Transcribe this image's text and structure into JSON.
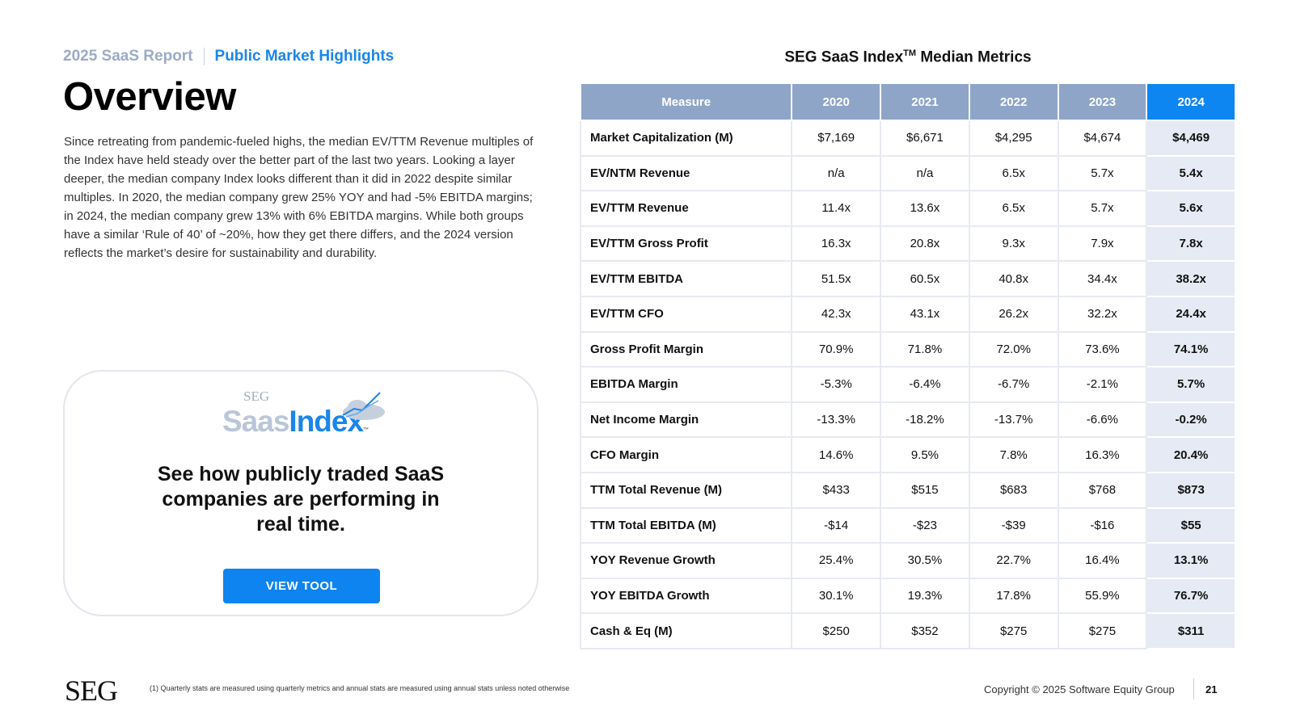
{
  "header": {
    "report": "2025 SaaS Report",
    "section": "Public Market Highlights",
    "title": "Overview"
  },
  "body": "Since retreating from pandemic-fueled highs, the median EV/TTM Revenue multiples of the Index have held steady over the better part of the last two years. Looking a layer deeper, the median company Index looks different than it did in 2022 despite similar multiples. In 2020, the median company grew 25% YOY and had -5% EBITDA margins; in 2024, the median company grew 13% with 6% EBITDA margins. While both groups have a similar ‘Rule of 40’ of ~20%, how they get there differs, and the 2024 version reflects the market’s desire for sustainability and durability.",
  "card": {
    "logo_seg": "SEG",
    "logo_saas": "Saas",
    "logo_index": "Index",
    "logo_tm": "™",
    "text": "See how publicly traded SaaS companies are performing in real time.",
    "button": "VIEW TOOL"
  },
  "table": {
    "title": "SEG SaaS Index",
    "title_tm": "TM",
    "title_suffix": " Median Metrics",
    "headers": [
      "Measure",
      "2020",
      "2021",
      "2022",
      "2023",
      "2024"
    ],
    "rows": [
      [
        "Market Capitalization (M)",
        "$7,169",
        "$6,671",
        "$4,295",
        "$4,674",
        "$4,469"
      ],
      [
        "EV/NTM Revenue",
        "n/a",
        "n/a",
        "6.5x",
        "5.7x",
        "5.4x"
      ],
      [
        "EV/TTM Revenue",
        "11.4x",
        "13.6x",
        "6.5x",
        "5.7x",
        "5.6x"
      ],
      [
        "EV/TTM Gross Profit",
        "16.3x",
        "20.8x",
        "9.3x",
        "7.9x",
        "7.8x"
      ],
      [
        "EV/TTM EBITDA",
        "51.5x",
        "60.5x",
        "40.8x",
        "34.4x",
        "38.2x"
      ],
      [
        "EV/TTM CFO",
        "42.3x",
        "43.1x",
        "26.2x",
        "32.2x",
        "24.4x"
      ],
      [
        "Gross Profit Margin",
        "70.9%",
        "71.8%",
        "72.0%",
        "73.6%",
        "74.1%"
      ],
      [
        "EBITDA Margin",
        "-5.3%",
        "-6.4%",
        "-6.7%",
        "-2.1%",
        "5.7%"
      ],
      [
        "Net Income Margin",
        "-13.3%",
        "-18.2%",
        "-13.7%",
        "-6.6%",
        "-0.2%"
      ],
      [
        "CFO Margin",
        "14.6%",
        "9.5%",
        "7.8%",
        "16.3%",
        "20.4%"
      ],
      [
        "TTM Total Revenue (M)",
        "$433",
        "$515",
        "$683",
        "$768",
        "$873"
      ],
      [
        "TTM Total EBITDA (M)",
        "-$14",
        "-$23",
        "-$39",
        "-$16",
        "$55"
      ],
      [
        "YOY Revenue Growth",
        "25.4%",
        "30.5%",
        "22.7%",
        "16.4%",
        "13.1%"
      ],
      [
        "YOY EBITDA Growth",
        "30.1%",
        "19.3%",
        "17.8%",
        "55.9%",
        "76.7%"
      ],
      [
        "Cash & Eq (M)",
        "$250",
        "$352",
        "$275",
        "$275",
        "$311"
      ]
    ]
  },
  "footer": {
    "logo": "SEG",
    "note": "(1)   Quarterly stats are measured using quarterly metrics and annual stats are measured using annual stats unless noted otherwise",
    "copyright": "Copyright © 2025 Software Equity Group",
    "page": "21"
  }
}
